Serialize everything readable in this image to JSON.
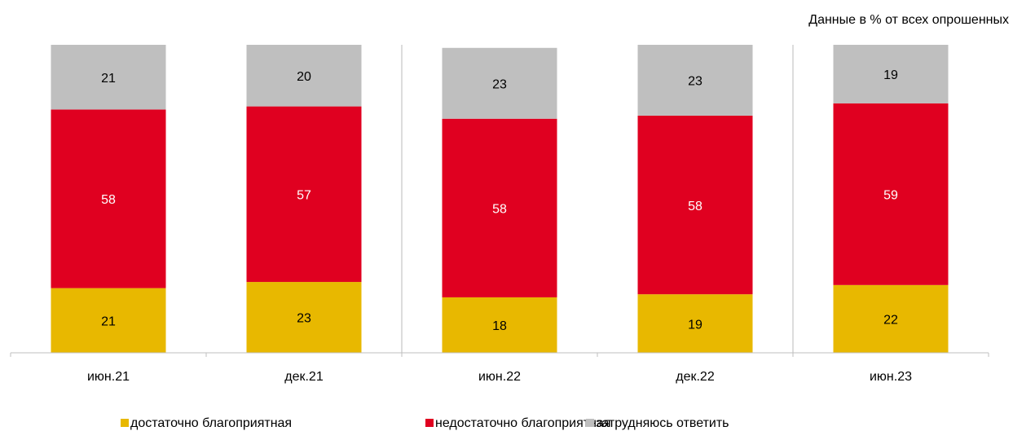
{
  "chart_data": {
    "type": "bar",
    "stacked": true,
    "subtitle": "Данные в % от всех опрошенных",
    "categories": [
      "июн.21",
      "дек.21",
      "июн.22",
      "дек.22",
      "июн.23"
    ],
    "series": [
      {
        "name": "достаточно благоприятная",
        "color": "#e8b800",
        "values": [
          21,
          23,
          18,
          19,
          22
        ]
      },
      {
        "name": "недостаточно благоприятная",
        "color": "#e00020",
        "values": [
          58,
          57,
          58,
          58,
          59
        ]
      },
      {
        "name": "затрудняюсь ответить",
        "color": "#bfbfbf",
        "values": [
          21,
          20,
          23,
          23,
          19
        ]
      }
    ],
    "ylim": [
      0,
      100
    ]
  }
}
